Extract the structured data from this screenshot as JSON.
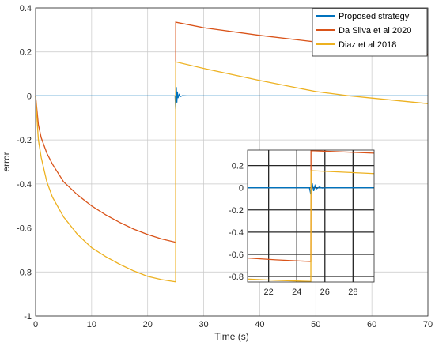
{
  "chart_data": {
    "type": "line",
    "xlabel": "Time (s)",
    "ylabel": "error",
    "xlim": [
      0,
      70
    ],
    "ylim": [
      -1,
      0.4
    ],
    "xticks": [
      0,
      10,
      20,
      30,
      40,
      50,
      60,
      70
    ],
    "xtick_labels": [
      "0",
      "10",
      "20",
      "30",
      "40",
      "50",
      "60",
      "70"
    ],
    "yticks": [
      -1,
      -0.8,
      -0.6,
      -0.4,
      -0.2,
      0,
      0.2,
      0.4
    ],
    "ytick_labels": [
      "-1",
      "-0.8",
      "-0.6",
      "-0.4",
      "-0.2",
      "0",
      "0.2",
      "0.4"
    ],
    "grid": true,
    "legend_position": "top-right",
    "series": [
      {
        "name": "Proposed strategy",
        "color": "#0072BD",
        "x": [
          0,
          24.9,
          25.0,
          25.1,
          25.2,
          25.3,
          25.4,
          25.6,
          25.8,
          26.2,
          27,
          70
        ],
        "y": [
          0,
          0,
          -0.06,
          0.04,
          -0.03,
          0.02,
          -0.01,
          0.006,
          -0.003,
          0.001,
          0,
          0
        ]
      },
      {
        "name": "Da Silva et al 2020",
        "color": "#D95319",
        "x": [
          0,
          0.5,
          1,
          2,
          3,
          5,
          7.5,
          10,
          12.5,
          15,
          17.5,
          20,
          22.5,
          25,
          25.01,
          30,
          40,
          50,
          60,
          70
        ],
        "y": [
          0,
          -0.13,
          -0.19,
          -0.26,
          -0.31,
          -0.39,
          -0.45,
          -0.5,
          -0.54,
          -0.575,
          -0.605,
          -0.63,
          -0.65,
          -0.665,
          0.335,
          0.31,
          0.275,
          0.245,
          0.215,
          0.19
        ]
      },
      {
        "name": "Diaz et al 2018",
        "color": "#EDB120",
        "x": [
          0,
          0.5,
          1,
          2,
          3,
          5,
          7.5,
          10,
          12.5,
          15,
          17.5,
          20,
          22.5,
          25,
          25.01,
          30,
          40,
          50,
          56,
          60,
          70
        ],
        "y": [
          0,
          -0.2,
          -0.28,
          -0.39,
          -0.46,
          -0.55,
          -0.63,
          -0.69,
          -0.73,
          -0.765,
          -0.795,
          -0.82,
          -0.835,
          -0.845,
          0.155,
          0.125,
          0.07,
          0.02,
          0.0,
          -0.01,
          -0.035
        ]
      }
    ],
    "inset": {
      "xlim": [
        20.5,
        29.5
      ],
      "ylim": [
        -0.85,
        0.34
      ],
      "xticks": [
        22,
        24,
        26,
        28
      ],
      "xtick_labels": [
        "22",
        "24",
        "26",
        "28"
      ],
      "yticks": [
        -0.8,
        -0.6,
        -0.4,
        -0.2,
        0,
        0.2
      ],
      "ytick_labels": [
        "-0.8",
        "-0.6",
        "-0.4",
        "-0.2",
        "0",
        "0.2"
      ],
      "grid": true
    }
  }
}
